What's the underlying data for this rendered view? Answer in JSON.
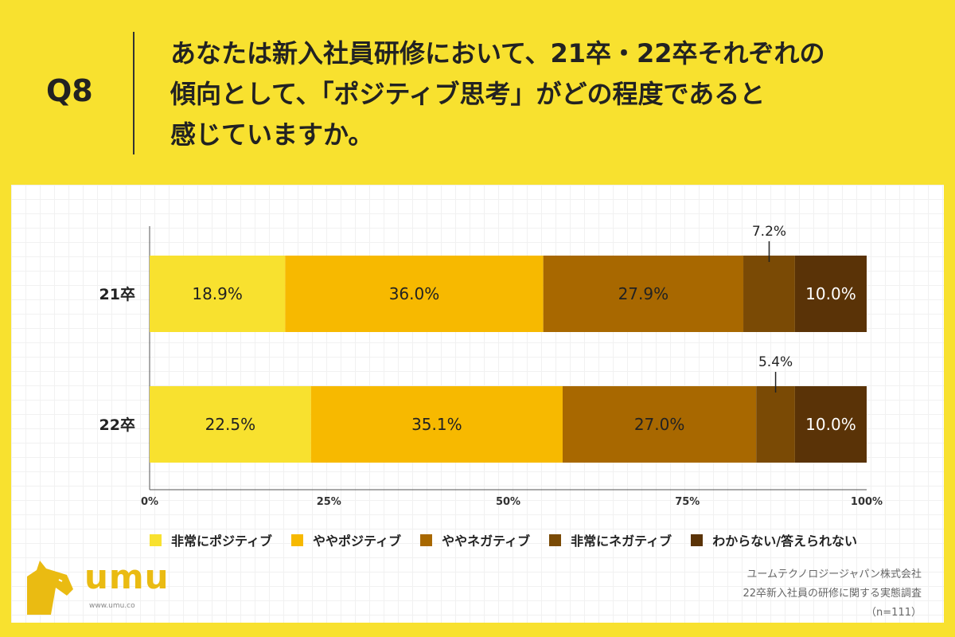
{
  "header": {
    "question_label": "Q8",
    "question_lines": [
      "あなたは新入社員研修において、21卒・22卒それぞれの",
      "傾向として、「ポジティブ思考」がどの程度であると",
      "感じていますか。"
    ]
  },
  "chart_data": {
    "type": "bar",
    "orientation": "horizontal",
    "stacked": true,
    "categories": [
      "21卒",
      "22卒"
    ],
    "series": [
      {
        "name": "非常にポジティブ",
        "values": [
          18.9,
          22.5
        ],
        "color": "#f8e12f"
      },
      {
        "name": "ややポジティブ",
        "values": [
          36.0,
          35.1
        ],
        "color": "#f7b900"
      },
      {
        "name": "ややネガティブ",
        "values": [
          27.9,
          27.0
        ],
        "color": "#a86800"
      },
      {
        "name": "非常にネガティブ",
        "values": [
          7.2,
          5.4
        ],
        "color": "#7a4a05"
      },
      {
        "name": "わからない/答えられない",
        "values": [
          10.0,
          10.0
        ],
        "color": "#5a3307"
      }
    ],
    "value_labels": [
      [
        "18.9%",
        "36.0%",
        "27.9%",
        "7.2%",
        "10.0%"
      ],
      [
        "22.5%",
        "35.1%",
        "27.0%",
        "5.4%",
        "10.0%"
      ]
    ],
    "x_ticks": [
      "0%",
      "25%",
      "50%",
      "75%",
      "100%"
    ],
    "xlim": [
      0,
      100
    ],
    "legend_position": "bottom",
    "grid": false
  },
  "logo": {
    "text": "umu",
    "url": "www.umu.co",
    "color": "#eabb12"
  },
  "source": {
    "lines": [
      "ユームテクノロジージャパン株式会社",
      "22卒新入社員の研修に関する実態調査",
      "（n=111）"
    ]
  }
}
